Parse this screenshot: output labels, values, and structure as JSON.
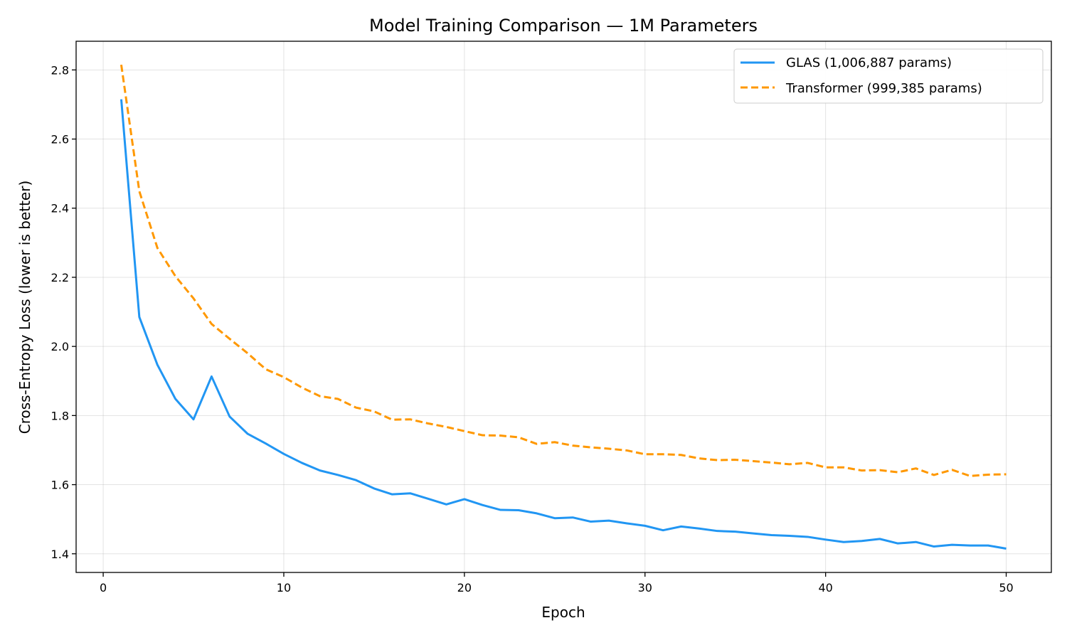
{
  "chart_data": {
    "type": "line",
    "title": "Model Training Comparison — 1M Parameters",
    "xlabel": "Epoch",
    "ylabel": "Cross-Entropy Loss (lower is better)",
    "xlim": [
      -1.5,
      52.5
    ],
    "ylim": [
      1.346,
      2.883
    ],
    "xticks": [
      0,
      10,
      20,
      30,
      40,
      50
    ],
    "yticks": [
      1.4,
      1.6,
      1.8,
      2.0,
      2.2,
      2.4,
      2.6,
      2.8
    ],
    "xtick_labels": [
      "0",
      "10",
      "20",
      "30",
      "40",
      "50"
    ],
    "ytick_labels": [
      "1.4",
      "1.6",
      "1.8",
      "2.0",
      "2.2",
      "2.4",
      "2.6",
      "2.8"
    ],
    "grid": true,
    "legend_position": "top-right",
    "x": [
      1,
      2,
      3,
      4,
      5,
      6,
      7,
      8,
      9,
      10,
      11,
      12,
      13,
      14,
      15,
      16,
      17,
      18,
      19,
      20,
      21,
      22,
      23,
      24,
      25,
      26,
      27,
      28,
      29,
      30,
      31,
      32,
      33,
      34,
      35,
      36,
      37,
      38,
      39,
      40,
      41,
      42,
      43,
      44,
      45,
      46,
      47,
      48,
      49,
      50
    ],
    "series": [
      {
        "name": "GLAS (1,006,887 params)",
        "color": "#2196F3",
        "style": "solid",
        "values": [
          2.715,
          2.085,
          1.947,
          1.848,
          1.789,
          1.913,
          1.797,
          1.747,
          1.719,
          1.689,
          1.663,
          1.641,
          1.628,
          1.613,
          1.589,
          1.572,
          1.575,
          1.559,
          1.543,
          1.558,
          1.541,
          1.527,
          1.526,
          1.517,
          1.503,
          1.505,
          1.493,
          1.496,
          1.488,
          1.481,
          1.468,
          1.479,
          1.473,
          1.466,
          1.464,
          1.459,
          1.454,
          1.452,
          1.449,
          1.441,
          1.434,
          1.437,
          1.443,
          1.43,
          1.434,
          1.421,
          1.426,
          1.424,
          1.424,
          1.415
        ]
      },
      {
        "name": "Transformer (999,385 params)",
        "color": "#FF9800",
        "style": "dashed",
        "values": [
          2.815,
          2.449,
          2.285,
          2.203,
          2.139,
          2.065,
          2.022,
          1.98,
          1.934,
          1.911,
          1.881,
          1.856,
          1.848,
          1.823,
          1.812,
          1.788,
          1.789,
          1.777,
          1.767,
          1.755,
          1.743,
          1.742,
          1.737,
          1.718,
          1.723,
          1.713,
          1.708,
          1.704,
          1.699,
          1.688,
          1.688,
          1.686,
          1.676,
          1.671,
          1.672,
          1.668,
          1.664,
          1.659,
          1.663,
          1.65,
          1.65,
          1.641,
          1.642,
          1.636,
          1.647,
          1.628,
          1.643,
          1.625,
          1.629,
          1.63
        ]
      }
    ]
  }
}
